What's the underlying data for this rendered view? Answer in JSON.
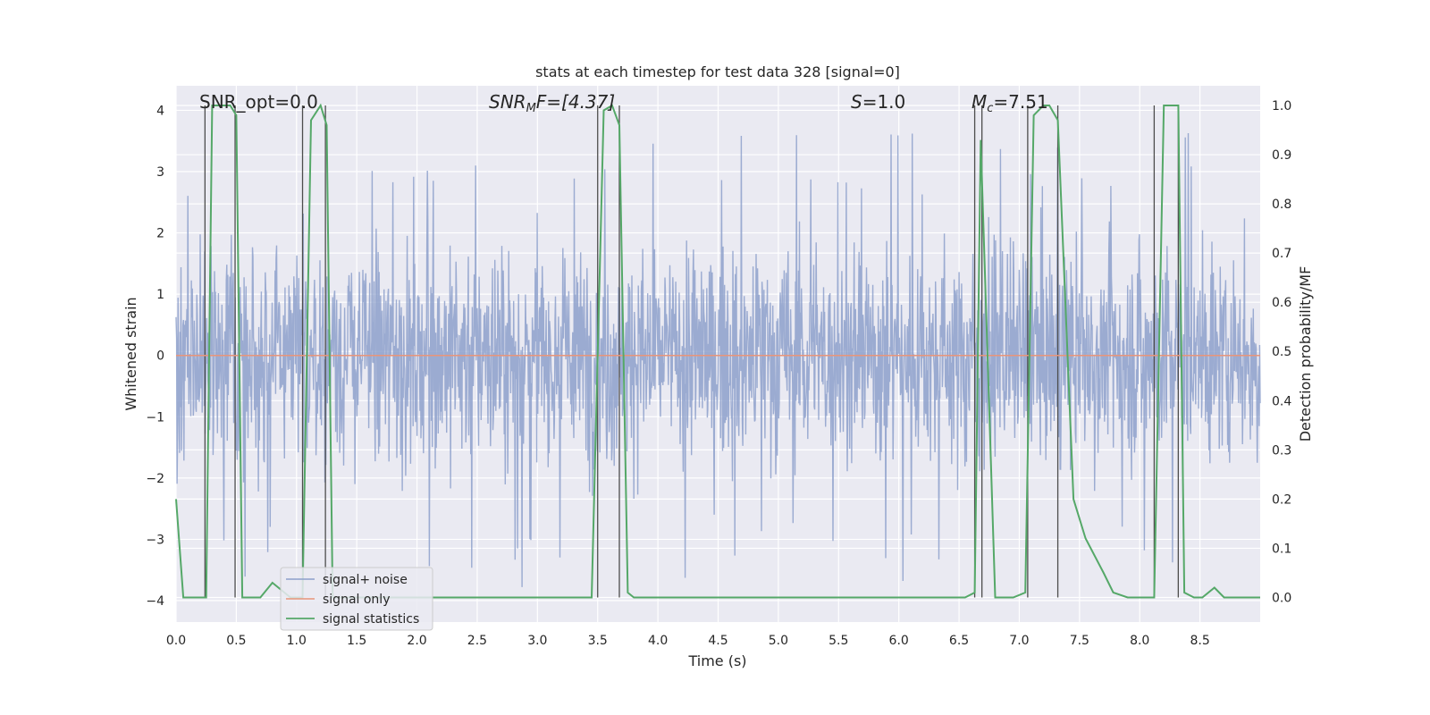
{
  "chart_data": {
    "type": "line",
    "title": "stats at each timestep for test data 328 [signal=0]",
    "xlabel": "Time (s)",
    "ylabel_left": "Whitened strain",
    "ylabel_right": "Detection probability/MF",
    "xlim": [
      0.0,
      9.0
    ],
    "ylim_left": [
      -4.35,
      4.4
    ],
    "ylim_right": [
      -0.05,
      1.04
    ],
    "x_ticks": [
      "0.0",
      "0.5",
      "1.0",
      "1.5",
      "2.0",
      "2.5",
      "3.0",
      "3.5",
      "4.0",
      "4.5",
      "5.0",
      "5.5",
      "6.0",
      "6.5",
      "7.0",
      "7.5",
      "8.0",
      "8.5"
    ],
    "y_ticks_left": [
      "4",
      "3",
      "2",
      "1",
      "0",
      "−1",
      "−2",
      "−3",
      "−4"
    ],
    "y_ticks_right": [
      "1.0",
      "0.9",
      "0.8",
      "0.7",
      "0.6",
      "0.5",
      "0.4",
      "0.3",
      "0.2",
      "0.1",
      "0.0"
    ],
    "grid": true,
    "legend_position": "lower-left",
    "annotations": {
      "snr_opt": "SNR_opt=0.0",
      "snr_mf_main": "SNR",
      "snr_mf_sub": "M",
      "snr_mf_rest": "F=[4.37]",
      "s_main": "S",
      "s_rest": "=1.0",
      "mc_main": "M",
      "mc_sub": "c",
      "mc_rest": "=7.51"
    },
    "series": [
      {
        "name": "signal+ noise",
        "color": "#8da0cb",
        "axis": "left",
        "description": "whitened noise trace, dense, mostly within ±2.5 with spikes to about ±4",
        "envelope": {
          "typical_amplitude": 2.3,
          "max_amplitude": 4.0
        }
      },
      {
        "name": "signal only",
        "color": "#e8957a",
        "axis": "left",
        "x": [
          0.0,
          9.0
        ],
        "y": [
          0.0,
          0.0
        ]
      },
      {
        "name": "signal statistics",
        "color": "#55a868",
        "axis": "right",
        "x": [
          0.0,
          0.06,
          0.25,
          0.3,
          0.45,
          0.5,
          0.55,
          0.7,
          0.8,
          0.95,
          1.05,
          1.12,
          1.2,
          1.25,
          1.3,
          3.45,
          3.55,
          3.62,
          3.68,
          3.75,
          3.8,
          6.55,
          6.63,
          6.68,
          6.8,
          6.95,
          7.05,
          7.12,
          7.2,
          7.25,
          7.32,
          7.45,
          7.55,
          7.7,
          7.78,
          7.9,
          8.12,
          8.2,
          8.25,
          8.32,
          8.37,
          8.45,
          8.52,
          8.62,
          8.7,
          9.0
        ],
        "y": [
          0.2,
          0.0,
          0.0,
          1.0,
          1.0,
          0.98,
          0.0,
          0.0,
          0.03,
          0.0,
          0.0,
          0.97,
          1.0,
          0.96,
          0.0,
          0.0,
          0.99,
          1.0,
          0.96,
          0.01,
          0.0,
          0.0,
          0.01,
          0.93,
          0.0,
          0.0,
          0.01,
          0.98,
          1.0,
          1.0,
          0.97,
          0.2,
          0.12,
          0.05,
          0.01,
          0.0,
          0.0,
          1.0,
          1.0,
          1.0,
          0.01,
          0.0,
          0.0,
          0.02,
          0.0,
          0.0
        ]
      }
    ],
    "vertical_markers": [
      0.24,
      0.49,
      1.05,
      1.24,
      3.5,
      3.68,
      6.63,
      6.69,
      7.07,
      7.32,
      8.12,
      8.32
    ]
  }
}
